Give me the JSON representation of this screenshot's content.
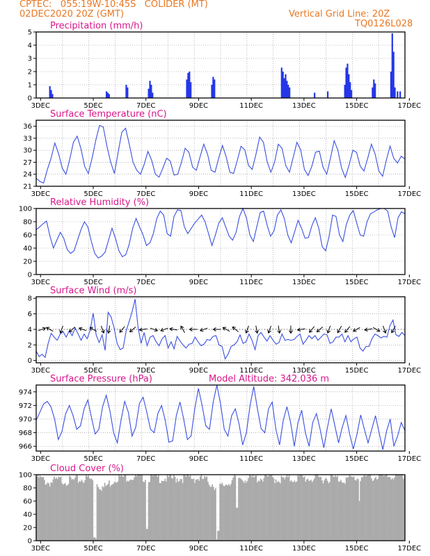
{
  "header": {
    "line1_left": "CPTEC:   055:19W-10:45S   COLIDER (MT)",
    "line2_left": "02DEC2020 20Z (GMT)",
    "line2_right": "Vertical Grid Line: 20Z",
    "line3_right": "TQ0126L028"
  },
  "x_labels": [
    "3DEC",
    "5DEC",
    "7DEC",
    "9DEC",
    "11DEC",
    "13DEC",
    "15DEC",
    "17DEC"
  ],
  "colors": {
    "title": "#d8168a",
    "header": "#e87722",
    "line": "#3a4fe0",
    "bar": "#2436e8",
    "cloud": "#aaaaaa"
  },
  "chart_data": [
    {
      "type": "bar",
      "title": "Precipitation (mm/h)",
      "ylim": [
        0,
        5
      ],
      "yticks": [
        0,
        1,
        2,
        3,
        4,
        5
      ],
      "x_range_days": [
        2.8333,
        16.8333
      ],
      "events": [
        [
          3.35,
          0.9
        ],
        [
          3.4,
          0.6
        ],
        [
          3.45,
          0.3
        ],
        [
          5.5,
          0.5
        ],
        [
          5.55,
          0.4
        ],
        [
          5.6,
          0.3
        ],
        [
          6.25,
          1.0
        ],
        [
          6.3,
          0.8
        ],
        [
          7.1,
          0.7
        ],
        [
          7.15,
          1.3
        ],
        [
          7.2,
          1.0
        ],
        [
          7.25,
          0.4
        ],
        [
          8.55,
          1.4
        ],
        [
          8.6,
          1.9
        ],
        [
          8.65,
          2.0
        ],
        [
          8.7,
          1.2
        ],
        [
          9.5,
          1.0
        ],
        [
          9.55,
          1.6
        ],
        [
          9.6,
          1.4
        ],
        [
          12.15,
          2.3
        ],
        [
          12.2,
          2.0
        ],
        [
          12.25,
          1.5
        ],
        [
          12.3,
          1.8
        ],
        [
          12.35,
          1.3
        ],
        [
          12.4,
          1.0
        ],
        [
          12.45,
          0.8
        ],
        [
          13.4,
          0.4
        ],
        [
          13.9,
          0.5
        ],
        [
          14.55,
          1.0
        ],
        [
          14.6,
          2.3
        ],
        [
          14.65,
          2.6
        ],
        [
          14.7,
          1.8
        ],
        [
          14.75,
          1.2
        ],
        [
          14.8,
          0.6
        ],
        [
          15.6,
          0.8
        ],
        [
          15.65,
          1.4
        ],
        [
          15.7,
          1.1
        ],
        [
          16.3,
          2.0
        ],
        [
          16.35,
          4.9
        ],
        [
          16.4,
          3.5
        ],
        [
          16.45,
          0.8
        ],
        [
          16.55,
          0.5
        ],
        [
          16.65,
          0.5
        ]
      ]
    },
    {
      "type": "line",
      "title": "Surface Temperature (nC)",
      "ylim": [
        21,
        37.5
      ],
      "yticks": [
        21,
        24,
        27,
        30,
        33,
        36
      ],
      "series": [
        {
          "values": [
            23,
            22.2,
            21.8,
            25.2,
            28,
            31.8,
            29.2,
            25.5,
            24,
            27.7,
            32,
            33.5,
            30.5,
            26,
            24.2,
            28,
            32.5,
            36.2,
            35.8,
            31,
            27,
            24.2,
            29.5,
            34.5,
            35.5,
            31.5,
            27,
            25,
            24,
            26.5,
            29.7,
            27.5,
            24,
            23.3,
            25.5,
            28,
            27.3,
            23.8,
            24,
            27,
            30.5,
            29.5,
            25.8,
            25,
            28.4,
            31.5,
            29,
            25,
            24.5,
            28,
            31.2,
            28.4,
            24.5,
            24.2,
            27.5,
            31,
            30.1,
            26.2,
            25.2,
            29,
            33.3,
            32,
            27.2,
            24.5,
            27,
            31.5,
            30.5,
            26.2,
            24.5,
            28.2,
            32,
            30.1,
            25.2,
            23.7,
            26,
            29.5,
            29.8,
            25.8,
            24,
            28,
            32.4,
            30,
            25.5,
            23.2,
            26.3,
            30,
            29.5,
            26,
            24.8,
            28,
            31.5,
            29,
            24.8,
            23.5,
            27.5,
            31,
            28,
            26.8,
            28.5,
            27.8
          ]
        }
      ]
    },
    {
      "type": "line",
      "title": "Relative Humidity (%)",
      "ylim": [
        0,
        100
      ],
      "yticks": [
        0,
        20,
        40,
        60,
        80,
        100
      ],
      "series": [
        {
          "values": [
            68,
            72,
            77,
            81,
            58,
            40,
            52,
            64,
            55,
            38,
            32,
            36,
            52,
            68,
            80,
            72,
            50,
            32,
            25,
            28,
            34,
            52,
            70,
            55,
            36,
            27,
            30,
            46,
            70,
            85,
            72,
            60,
            44,
            48,
            62,
            85,
            96,
            90,
            62,
            58,
            88,
            98,
            97,
            72,
            62,
            70,
            78,
            84,
            90,
            80,
            62,
            44,
            60,
            78,
            86,
            72,
            58,
            52,
            64,
            88,
            100,
            86,
            60,
            50,
            72,
            94,
            96,
            75,
            58,
            66,
            90,
            98,
            85,
            60,
            48,
            65,
            82,
            70,
            55,
            56,
            74,
            86,
            70,
            42,
            36,
            58,
            90,
            88,
            60,
            50,
            76,
            90,
            97,
            78,
            60,
            58,
            80,
            92,
            95,
            98,
            100,
            100,
            96,
            72,
            56,
            86,
            95,
            92
          ]
        }
      ]
    },
    {
      "type": "line",
      "title": "Surface Wind (m/s)",
      "ylim": [
        -0.3,
        8.2
      ],
      "yticks": [
        0,
        2,
        4,
        6,
        8
      ],
      "series": [
        {
          "values": [
            1.2,
            0.5,
            0.8,
            0.4,
            2.2,
            3.5,
            3.0,
            2.6,
            3.4,
            3.7,
            3.0,
            3.8,
            3.2,
            4.2,
            3.4,
            2.6,
            3.4,
            2.8,
            3.9,
            6.1,
            3.3,
            2.3,
            3.3,
            1.3,
            6.2,
            5.6,
            4.2,
            2.2,
            1.4,
            1.6,
            3.8,
            5.0,
            6.3,
            7.9,
            4.2,
            2.2,
            3.6,
            1.9,
            3.0,
            3.2,
            2.4,
            1.9,
            2.8,
            3.2,
            1.6,
            2.4,
            1.5,
            3.1,
            2.5,
            2.0,
            1.6,
            2.1,
            2.2,
            3.0,
            2.4,
            1.9,
            2.1,
            2.7,
            2.6,
            3.1,
            3.2,
            2.0,
            1.8,
            0.2,
            0.8,
            1.8,
            2.0,
            2.4,
            3.3,
            2.2,
            2.4,
            3.4,
            2.6,
            1.4,
            3.2,
            3.6,
            3.0,
            2.5,
            3.2,
            2.6,
            2.1,
            2.3,
            3.4,
            2.6,
            2.7,
            2.6,
            2.7,
            3.1,
            3.4,
            2.1,
            2.6,
            3.2,
            2.8,
            3.2,
            2.6,
            3.0,
            3.4,
            3.3,
            2.2,
            2.4,
            3.0,
            3.0,
            3.4,
            2.4,
            3.2,
            2.4,
            2.8,
            3.0,
            1.6,
            1.2,
            1.8,
            1.8,
            2.8,
            3.4,
            3.2,
            2.9,
            3.1,
            3.0,
            4.5,
            5.2,
            3.3,
            3.1,
            3.6,
            3.2
          ]
        }
      ],
      "arrows": [
        [
          3.05,
          70
        ],
        [
          3.35,
          300
        ],
        [
          3.8,
          200
        ],
        [
          4.2,
          230
        ],
        [
          4.6,
          290
        ],
        [
          5.0,
          300
        ],
        [
          5.35,
          160
        ],
        [
          5.6,
          190
        ],
        [
          6.1,
          220
        ],
        [
          6.5,
          230
        ],
        [
          6.9,
          260
        ],
        [
          7.3,
          110
        ],
        [
          7.7,
          250
        ],
        [
          8.05,
          280
        ],
        [
          8.4,
          330
        ],
        [
          8.8,
          270
        ],
        [
          9.2,
          250
        ],
        [
          9.7,
          270
        ],
        [
          10.05,
          300
        ],
        [
          10.4,
          310
        ],
        [
          10.85,
          200
        ],
        [
          11.2,
          170
        ],
        [
          11.7,
          200
        ],
        [
          12.05,
          170
        ],
        [
          12.5,
          180
        ],
        [
          12.9,
          260
        ],
        [
          13.3,
          220
        ],
        [
          13.6,
          230
        ],
        [
          13.95,
          200
        ],
        [
          14.35,
          210
        ],
        [
          14.65,
          220
        ],
        [
          15.0,
          240
        ],
        [
          15.45,
          260
        ],
        [
          15.75,
          120
        ],
        [
          16.05,
          160
        ],
        [
          16.4,
          210
        ]
      ]
    },
    {
      "type": "line",
      "title": "Surface Pressure (hPa)",
      "annotation": "Model Altitude: 342.036 m",
      "ylim": [
        965.3,
        975
      ],
      "yticks": [
        966,
        968,
        970,
        972,
        974
      ],
      "series": [
        {
          "values": [
            969.8,
            971.0,
            972.2,
            972.6,
            971.8,
            970.0,
            967.0,
            968.2,
            970.8,
            972.0,
            970.5,
            968.5,
            969.0,
            971.5,
            972.8,
            970.2,
            967.8,
            968.5,
            971.8,
            973.5,
            971.2,
            968.0,
            966.5,
            969.8,
            972.6,
            971.0,
            967.5,
            968.8,
            972.3,
            973.2,
            971.0,
            968.5,
            968.0,
            970.8,
            972.0,
            969.8,
            966.6,
            966.8,
            970.5,
            972.5,
            970.0,
            967.0,
            967.5,
            971.5,
            974.5,
            972.0,
            969.0,
            968.5,
            972.5,
            975.0,
            972.2,
            968.5,
            967.5,
            970.5,
            971.5,
            969.3,
            966.2,
            968.0,
            972.0,
            974.8,
            971.5,
            968.6,
            968.0,
            971.5,
            972.5,
            968.5,
            966.2,
            969.8,
            971.8,
            969.5,
            966.0,
            969.5,
            971.3,
            968.0,
            966.0,
            969.5,
            970.8,
            968.5,
            965.8,
            968.8,
            971.5,
            969.0,
            966.5,
            968.8,
            970.5,
            967.8,
            965.6,
            967.8,
            970.6,
            968.5,
            966.5,
            968.5,
            970.5,
            968.0,
            965.5,
            968.2,
            970.0,
            966.0,
            967.5,
            969.5,
            968.3
          ]
        }
      ]
    },
    {
      "type": "bar",
      "title": "Cloud Cover (%)",
      "ylim": [
        0,
        100
      ],
      "yticks": [
        0,
        20,
        40,
        60,
        80,
        100
      ],
      "mean_profile": [
        [
          2.83,
          97
        ],
        [
          3.3,
          88
        ],
        [
          3.8,
          92
        ],
        [
          4.2,
          90
        ],
        [
          4.8,
          95
        ],
        [
          5.4,
          80
        ],
        [
          5.9,
          96
        ],
        [
          6.4,
          97
        ],
        [
          7.1,
          96
        ],
        [
          7.5,
          95
        ],
        [
          8.0,
          94
        ],
        [
          8.6,
          96
        ],
        [
          9.2,
          93
        ],
        [
          9.8,
          80
        ],
        [
          10.4,
          95
        ],
        [
          11.0,
          94
        ],
        [
          11.6,
          96
        ],
        [
          12.2,
          92
        ],
        [
          12.8,
          95
        ],
        [
          13.4,
          94
        ],
        [
          14.0,
          95
        ],
        [
          14.6,
          93
        ],
        [
          15.2,
          96
        ],
        [
          15.8,
          97
        ],
        [
          16.4,
          98
        ],
        [
          16.83,
          99
        ]
      ],
      "dips": [
        [
          5.05,
          5
        ],
        [
          5.1,
          3
        ],
        [
          7.05,
          18
        ],
        [
          9.7,
          2
        ],
        [
          9.75,
          15
        ],
        [
          10.45,
          50
        ],
        [
          15.1,
          60
        ]
      ]
    }
  ]
}
